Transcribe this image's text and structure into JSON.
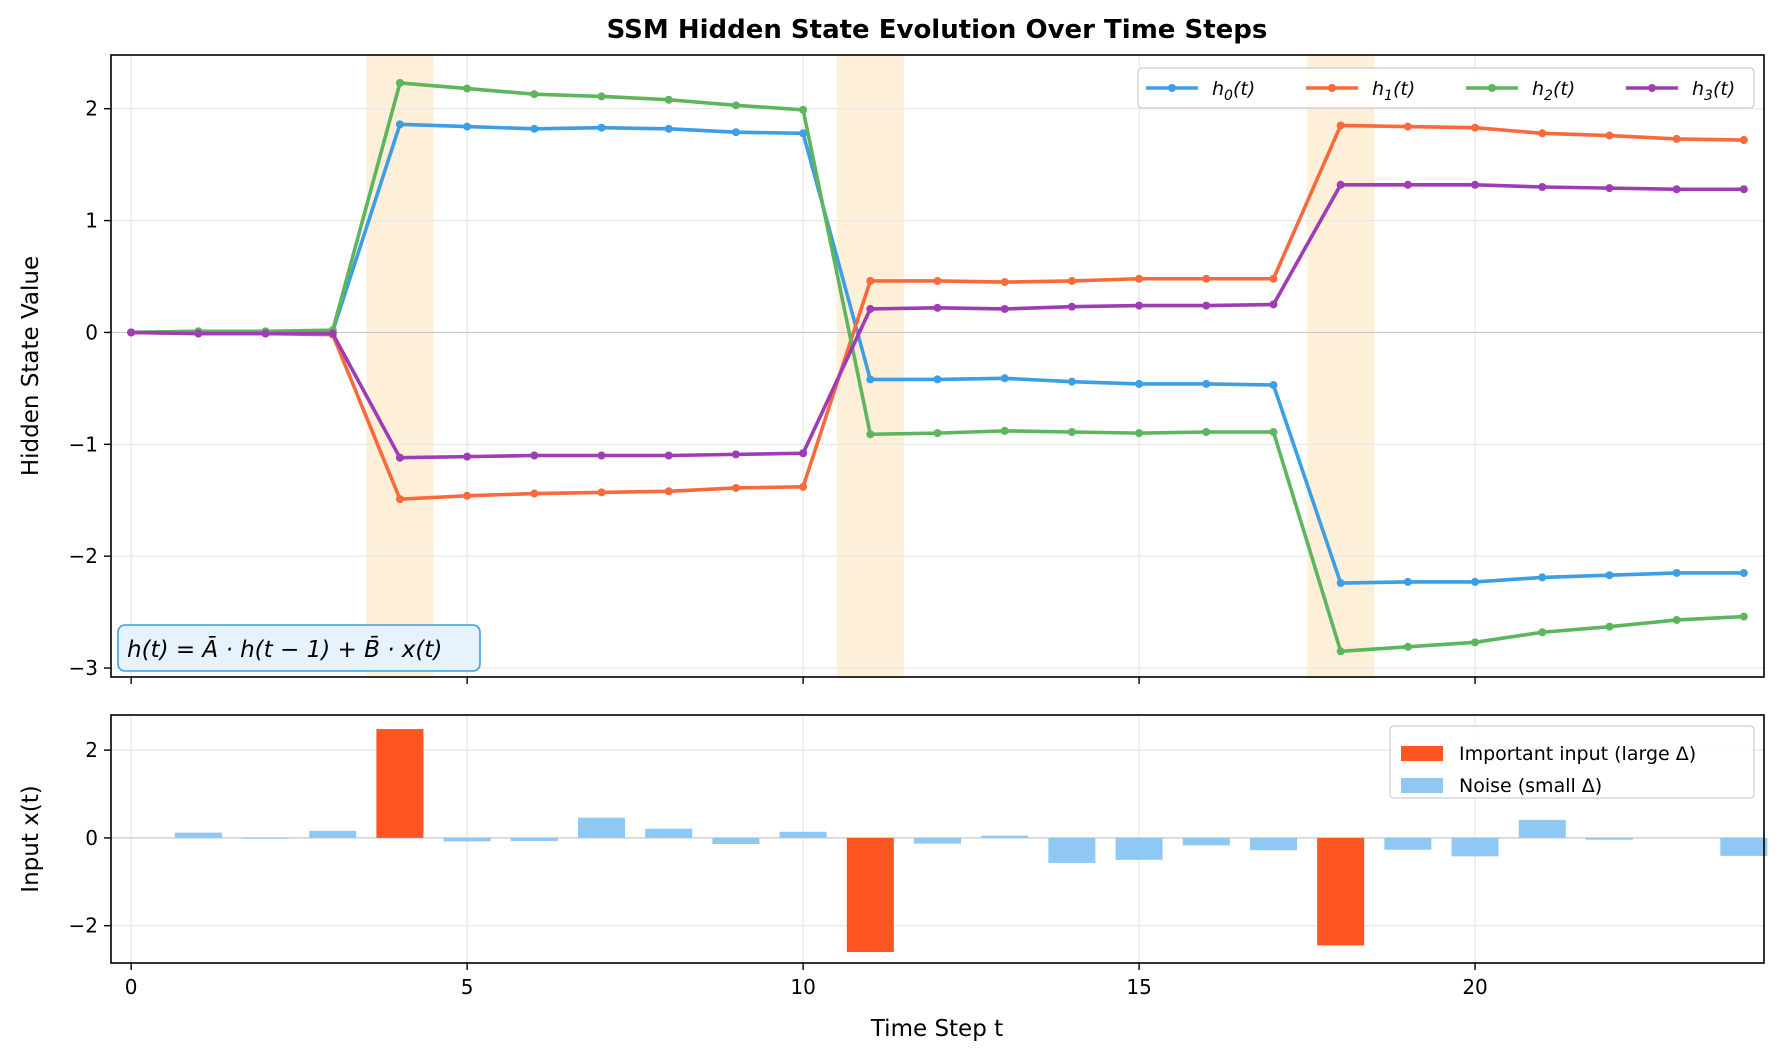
{
  "chart_data": [
    {
      "type": "line",
      "title": "SSM Hidden State Evolution Over Time Steps",
      "ylabel": "Hidden State Value",
      "xlim": [
        -0.3,
        24.3
      ],
      "ylim": [
        -3.08,
        2.48
      ],
      "xticks": [
        0,
        5,
        10,
        15,
        20
      ],
      "yticks": [
        -3,
        -2,
        -1,
        0,
        1,
        2
      ],
      "grid": true,
      "legend_position": "top-right",
      "highlight_spans": [
        [
          3.5,
          4.5
        ],
        [
          10.5,
          11.5
        ],
        [
          17.5,
          18.5
        ]
      ],
      "annotation": "h(t) = Ā · h(t − 1) + B̄ · x(t)",
      "annotation_position": "bottom-left",
      "x": [
        0,
        1,
        2,
        3,
        4,
        5,
        6,
        7,
        8,
        9,
        10,
        11,
        12,
        13,
        14,
        15,
        16,
        17,
        18,
        19,
        20,
        21,
        22,
        23,
        24
      ],
      "series": [
        {
          "name": "h",
          "sub": "0",
          "color": "#3c9ee5",
          "values": [
            0,
            0.01,
            0.0,
            0.01,
            1.86,
            1.84,
            1.82,
            1.83,
            1.82,
            1.79,
            1.78,
            -0.42,
            -0.42,
            -0.41,
            -0.44,
            -0.46,
            -0.46,
            -0.47,
            -2.24,
            -2.23,
            -2.23,
            -2.19,
            -2.17,
            -2.15,
            -2.15
          ]
        },
        {
          "name": "h",
          "sub": "1",
          "color": "#f8693b",
          "values": [
            0,
            -0.01,
            -0.01,
            -0.02,
            -1.49,
            -1.46,
            -1.44,
            -1.43,
            -1.42,
            -1.39,
            -1.38,
            0.46,
            0.46,
            0.45,
            0.46,
            0.48,
            0.48,
            0.48,
            1.85,
            1.84,
            1.83,
            1.78,
            1.76,
            1.73,
            1.72
          ]
        },
        {
          "name": "h",
          "sub": "2",
          "color": "#5db55e",
          "values": [
            0,
            0.01,
            0.01,
            0.02,
            2.23,
            2.18,
            2.13,
            2.11,
            2.08,
            2.03,
            1.99,
            -0.91,
            -0.9,
            -0.88,
            -0.89,
            -0.9,
            -0.89,
            -0.89,
            -2.85,
            -2.81,
            -2.77,
            -2.68,
            -2.63,
            -2.57,
            -2.54
          ]
        },
        {
          "name": "h",
          "sub": "3",
          "color": "#9f3cb4",
          "values": [
            0,
            -0.01,
            -0.01,
            -0.01,
            -1.12,
            -1.11,
            -1.1,
            -1.1,
            -1.1,
            -1.09,
            -1.08,
            0.21,
            0.22,
            0.21,
            0.23,
            0.24,
            0.24,
            0.25,
            1.32,
            1.32,
            1.32,
            1.3,
            1.29,
            1.28,
            1.28
          ]
        }
      ]
    },
    {
      "type": "bar",
      "xlabel": "Time Step t",
      "ylabel": "Input x(t)",
      "xlim": [
        -0.3,
        24.3
      ],
      "ylim": [
        -2.85,
        2.8
      ],
      "xticks": [
        0,
        5,
        10,
        15,
        20
      ],
      "yticks": [
        -2,
        0,
        2
      ],
      "grid": true,
      "legend_position": "top-right",
      "categories": [
        0,
        1,
        2,
        3,
        4,
        5,
        6,
        7,
        8,
        9,
        10,
        11,
        12,
        13,
        14,
        15,
        16,
        17,
        18,
        19,
        20,
        21,
        22,
        23,
        24
      ],
      "values": [
        0,
        0.12,
        -0.02,
        0.16,
        2.48,
        -0.08,
        -0.07,
        0.46,
        0.21,
        -0.14,
        0.14,
        -2.6,
        -0.13,
        0.05,
        -0.57,
        -0.5,
        -0.17,
        -0.28,
        -2.45,
        -0.27,
        -0.42,
        0.41,
        -0.04,
        0,
        -0.41
      ],
      "important": [
        4,
        11,
        18
      ],
      "legend": [
        {
          "label": "Important input (large Δ)",
          "color": "#ff5522"
        },
        {
          "label": "Noise (small Δ)",
          "color": "#90c8f4"
        }
      ]
    }
  ]
}
